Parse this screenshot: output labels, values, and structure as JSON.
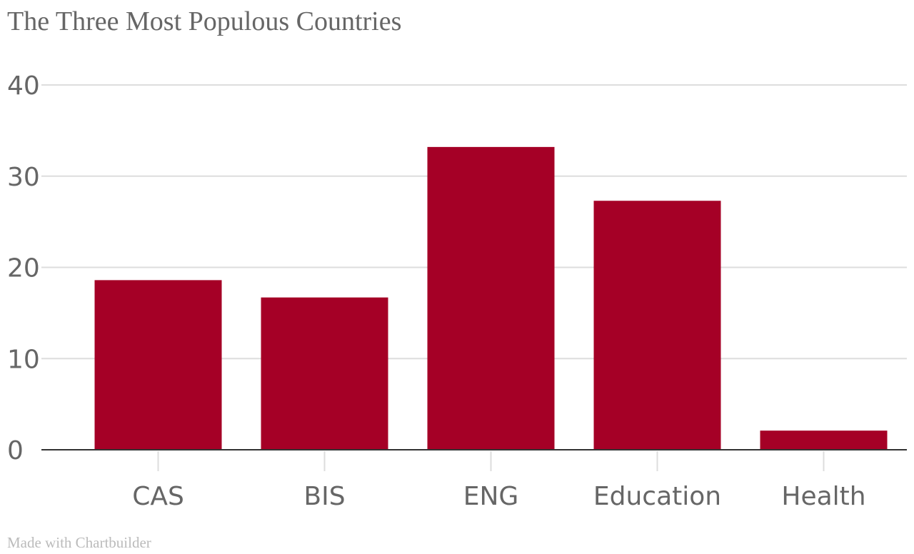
{
  "chart_data": {
    "type": "bar",
    "title": "The Three Most Populous Countries",
    "xlabel": "",
    "ylabel": "",
    "categories": [
      "CAS",
      "BIS",
      "ENG",
      "Education",
      "Health"
    ],
    "values": [
      18.6,
      16.7,
      33.2,
      27.3,
      2.1
    ],
    "ylim": [
      0,
      40
    ],
    "yticks": [
      "0",
      "10",
      "20",
      "30",
      "40"
    ],
    "grid": true,
    "legend": "none",
    "bar_color": "#a50026"
  },
  "footer": {
    "credit": "Made with Chartbuilder"
  }
}
